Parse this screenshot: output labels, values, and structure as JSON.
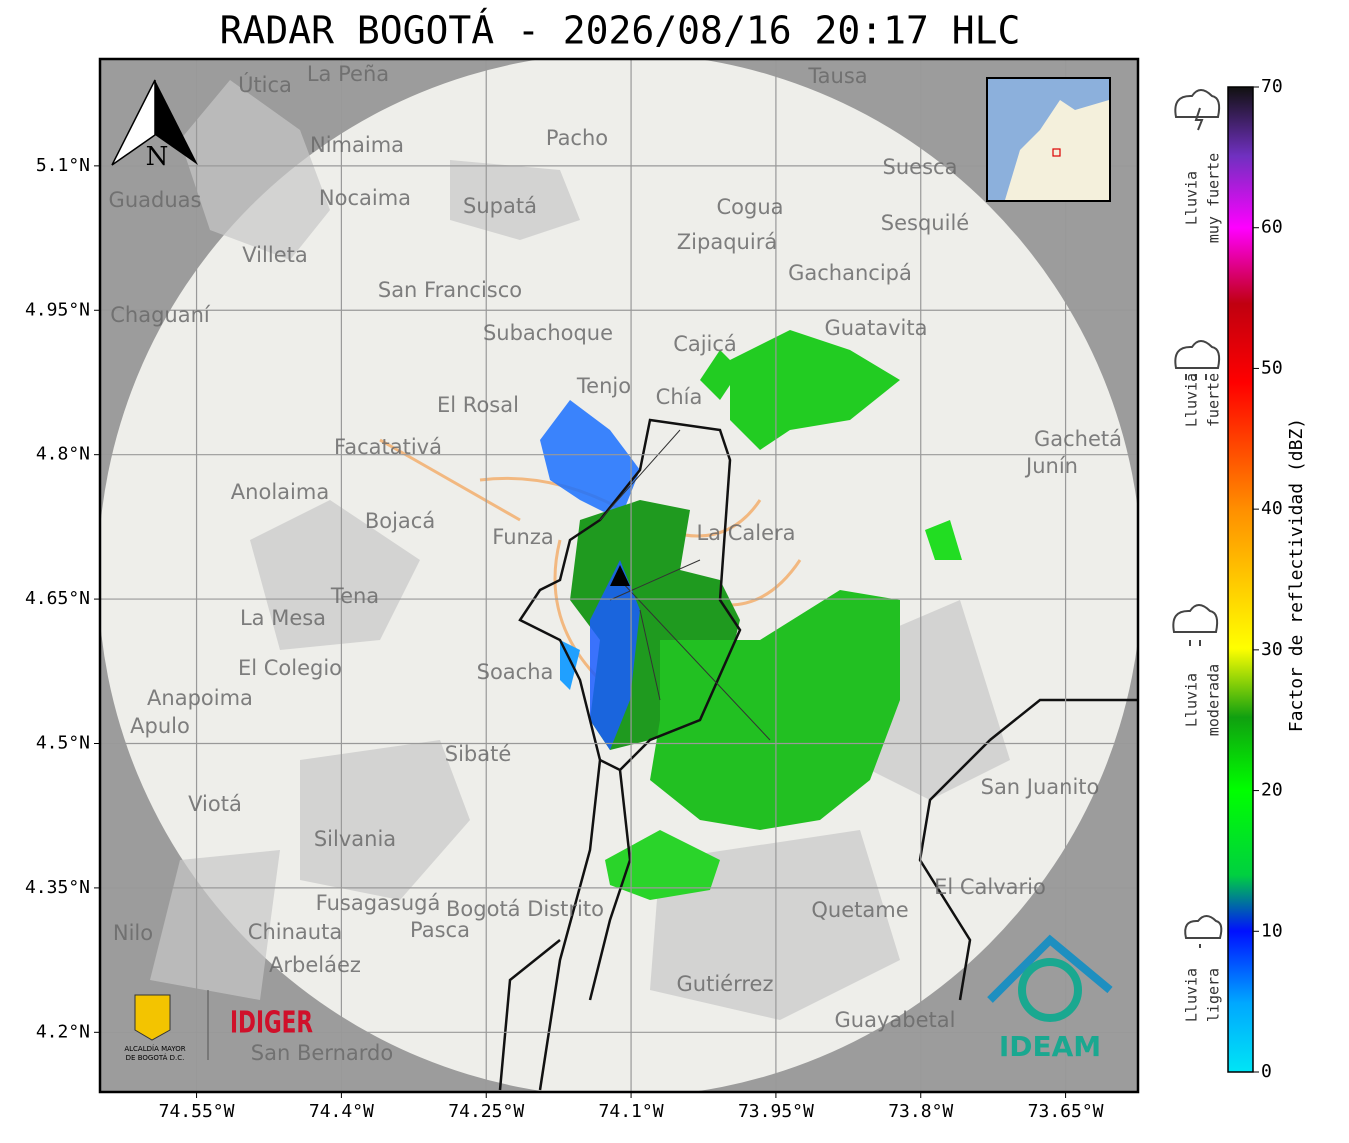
{
  "title": "RADAR BOGOTÁ - 2026/08/16 20:17 HLC",
  "map": {
    "xlim": [
      -74.65,
      -73.575
    ],
    "ylim": [
      4.138,
      5.211
    ],
    "xticks": [
      {
        "value": -74.55,
        "label": "74.55°W"
      },
      {
        "value": -74.4,
        "label": "74.4°W"
      },
      {
        "value": -74.25,
        "label": "74.25°W"
      },
      {
        "value": -74.1,
        "label": "74.1°W"
      },
      {
        "value": -73.95,
        "label": "73.95°W"
      },
      {
        "value": -73.8,
        "label": "73.8°W"
      },
      {
        "value": -73.65,
        "label": "73.65°W"
      }
    ],
    "yticks": [
      {
        "value": 5.1,
        "label": "5.1°N"
      },
      {
        "value": 4.95,
        "label": "4.95°N"
      },
      {
        "value": 4.8,
        "label": "4.8°N"
      },
      {
        "value": 4.65,
        "label": "4.65°N"
      },
      {
        "value": 4.5,
        "label": "4.5°N"
      },
      {
        "value": 4.35,
        "label": "4.35°N"
      },
      {
        "value": 4.2,
        "label": "4.2°N"
      }
    ],
    "grid": true,
    "places": [
      "La Peña",
      "Útica",
      "Tausa",
      "Pacho",
      "Nimaima",
      "Guaduas",
      "Nocaima",
      "Supatá",
      "Cogua",
      "Suesca",
      "Sesquilé",
      "Zipaquirá",
      "Villeta",
      "Gachancipá",
      "San Francisco",
      "Chaguaní",
      "Subachoque",
      "Guatavita",
      "Cajicá",
      "Tenjo",
      "Chía",
      "El Rosal",
      "Facatativá",
      "Gachetá",
      "Junín",
      "Anolaima",
      "Bojacá",
      "Funza",
      "La Calera",
      "Tena",
      "La Mesa",
      "El Colegio",
      "Soacha",
      "Anapoima",
      "Apulo",
      "Sibaté",
      "San Juanito",
      "Viotá",
      "Silvania",
      "Fusagasugá",
      "Pasca",
      "Chinauta",
      "Quetame",
      "El Calvario",
      "Arbeláez",
      "Gutiérrez",
      "Guayabetal",
      "San Bernardo",
      "Nilo",
      "Bogotá Distrito"
    ],
    "north": "N"
  },
  "colorbar": {
    "label": "Factor de reflectividad (dBZ)",
    "lim": [
      0,
      70
    ],
    "ticks": [
      0,
      10,
      20,
      30,
      40,
      50,
      60,
      70
    ],
    "classes": [
      [
        "Lluvia",
        "muy fuerte"
      ],
      [
        "Lluvia",
        "fuerte"
      ],
      [
        "Lluvia",
        "moderada"
      ],
      [
        "Lluvia",
        "ligera"
      ]
    ]
  },
  "logos": {
    "idiger": "IDIGER",
    "ideam": "IDEAM",
    "alcaldia": [
      "ALCALDÍA MAYOR",
      "DE BOGOTÁ D.C."
    ]
  }
}
